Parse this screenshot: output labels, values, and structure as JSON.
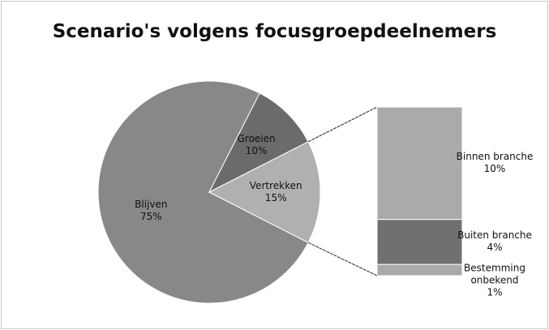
{
  "chart_data": {
    "type": "pie",
    "title": "Scenario's volgens focusgroepdeelnemers",
    "categories": [
      "Blijven",
      "Groeien",
      "Vertrekken"
    ],
    "values": [
      75,
      10,
      15
    ],
    "value_labels": [
      "75%",
      "10%",
      "15%"
    ],
    "colors": [
      "#888888",
      "#6b6b6b",
      "#b0b0b0"
    ],
    "breakdown": {
      "categories": [
        "Binnen branche",
        "Buiten branche",
        "Bestemming onbekend"
      ],
      "values": [
        10,
        4,
        1
      ],
      "value_labels": [
        "10%",
        "4%",
        "1%"
      ],
      "colors": [
        "#aaaaaa",
        "#707070",
        "#aaaaaa"
      ]
    }
  }
}
